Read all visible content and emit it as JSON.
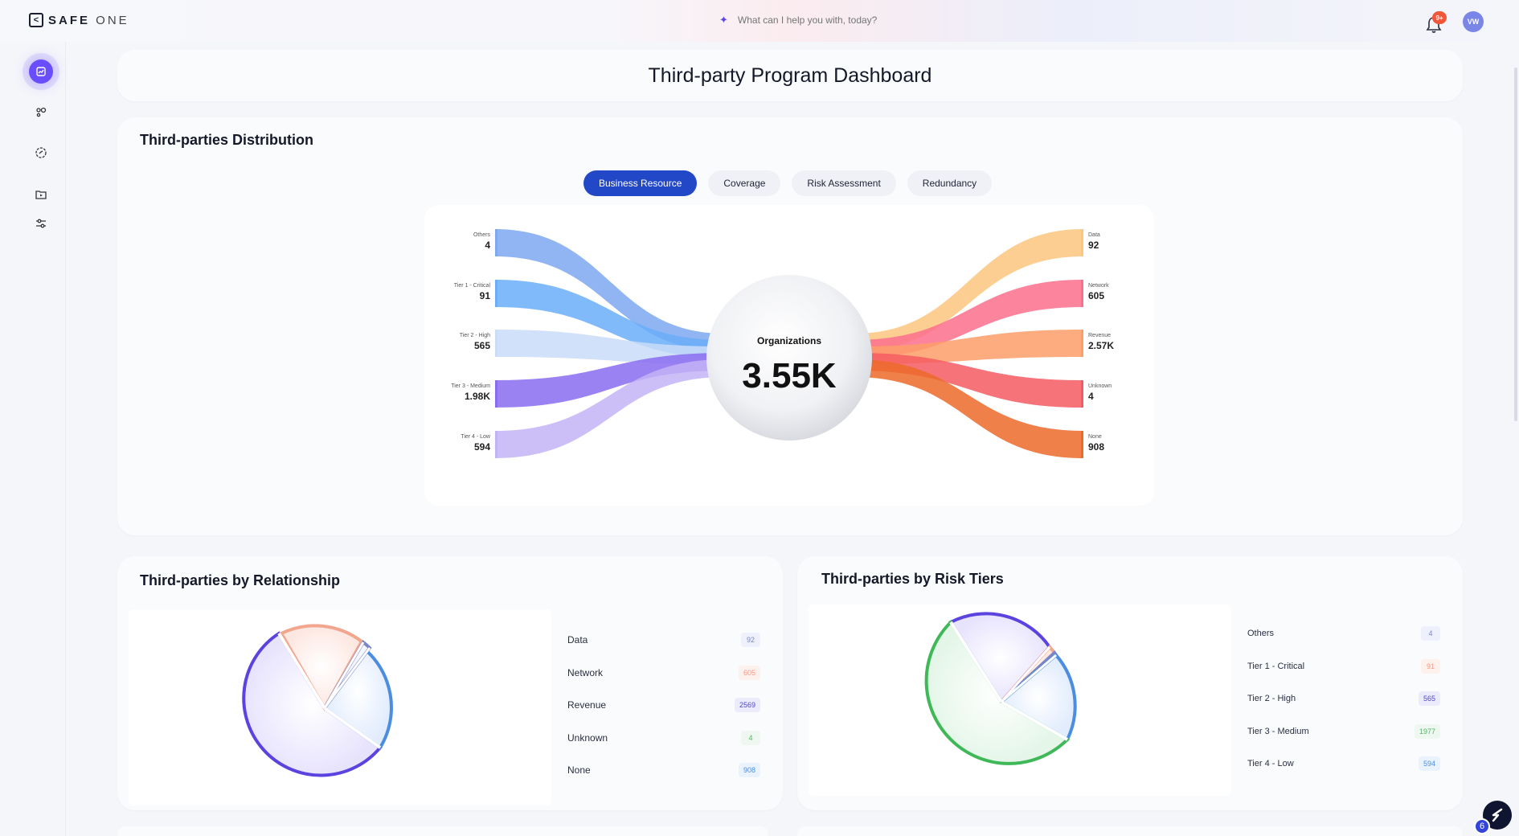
{
  "brand": {
    "name_bold": "SAFE",
    "name_light": " ONE"
  },
  "search": {
    "placeholder": "What can I help you with, today?"
  },
  "notifications": {
    "badge": "9+"
  },
  "user": {
    "initials": "VW"
  },
  "sidebar": {
    "items": [
      {
        "icon": "dashboard-icon",
        "active": true
      },
      {
        "icon": "nodes-icon"
      },
      {
        "icon": "gauge-icon"
      },
      {
        "icon": "folder-icon"
      },
      {
        "icon": "sliders-icon"
      }
    ]
  },
  "page": {
    "title": "Third-party Program Dashboard"
  },
  "distribution": {
    "title": "Third-parties Distribution",
    "tabs": [
      "Business Resource",
      "Coverage",
      "Risk Assessment",
      "Redundancy"
    ],
    "active_tab": "Business Resource",
    "center_label": "Organizations",
    "center_value": "3.55K",
    "left": [
      {
        "label": "Others",
        "value": "4",
        "color": "#7ea8f0"
      },
      {
        "label": "Tier 1 - Critical",
        "value": "91",
        "color": "#6aaef9"
      },
      {
        "label": "Tier 2 - High",
        "value": "565",
        "color": "#c9dcf8"
      },
      {
        "label": "Tier 3 - Medium",
        "value": "1.98K",
        "color": "#8a6cf0"
      },
      {
        "label": "Tier 4 - Low",
        "value": "594",
        "color": "#c3b4f6"
      }
    ],
    "right": [
      {
        "label": "Data",
        "value": "92",
        "color": "#fbc67e"
      },
      {
        "label": "Network",
        "value": "605",
        "color": "#fb6f8c"
      },
      {
        "label": "Revenue",
        "value": "2.57K",
        "color": "#fd9e6a"
      },
      {
        "label": "Unknown",
        "value": "4",
        "color": "#f45a62"
      },
      {
        "label": "None",
        "value": "908",
        "color": "#ec6a2a"
      }
    ]
  },
  "relationship": {
    "title": "Third-parties by Relationship",
    "legend": [
      {
        "label": "Data",
        "value": "92",
        "text_color": "#7b86c9",
        "bg": "#eef0fb"
      },
      {
        "label": "Network",
        "value": "605",
        "text_color": "#f29a85",
        "bg": "#fdf1ee"
      },
      {
        "label": "Revenue",
        "value": "2569",
        "text_color": "#5146c7",
        "bg": "#ecebfb"
      },
      {
        "label": "Unknown",
        "value": "4",
        "text_color": "#58b06b",
        "bg": "#eef8f0"
      },
      {
        "label": "None",
        "value": "908",
        "text_color": "#4b8ee0",
        "bg": "#eaf3fd"
      }
    ]
  },
  "risk_tiers": {
    "title": "Third-parties by Risk Tiers",
    "legend": [
      {
        "label": "Others",
        "value": "4",
        "text_color": "#7b86c9",
        "bg": "#eef0fb"
      },
      {
        "label": "Tier 1 - Critical",
        "value": "91",
        "text_color": "#f29a85",
        "bg": "#fdf1ee"
      },
      {
        "label": "Tier 2 - High",
        "value": "565",
        "text_color": "#5146c7",
        "bg": "#ecebfb"
      },
      {
        "label": "Tier 3 - Medium",
        "value": "1977",
        "text_color": "#58b06b",
        "bg": "#eef8f0"
      },
      {
        "label": "Tier 4 - Low",
        "value": "594",
        "text_color": "#4b8ee0",
        "bg": "#eaf3fd"
      }
    ]
  },
  "assistant": {
    "badge": "6"
  }
}
